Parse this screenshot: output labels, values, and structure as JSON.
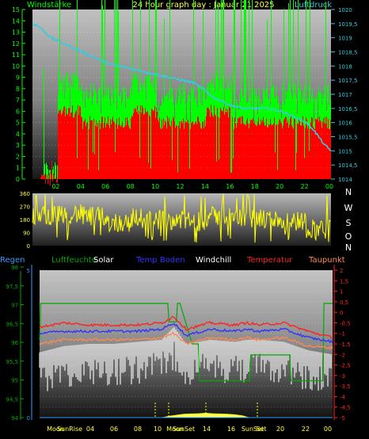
{
  "colors": {
    "background": "#000000",
    "wind_gust": "#00ff00",
    "wind_avg": "#ff0000",
    "pressure": "#33ccdd",
    "wind_dir": "#ffff00",
    "regen": "#3399ff",
    "luftfeuchte": "#00aa00",
    "solar": "#ffff55",
    "temp_boden": "#3333ff",
    "windchill": "#ffffff",
    "temperatur": "#ff2222",
    "taupunkt": "#ff8855"
  },
  "chart_data": [
    {
      "type": "bar",
      "title": "24 hour graph day : Januar 21 2025",
      "left_axis_title": "Windstärke",
      "right_axis_title": "Luftdruck",
      "x_ticks": [
        "02",
        "04",
        "06",
        "08",
        "10",
        "12",
        "14",
        "16",
        "18",
        "20",
        "22",
        "00"
      ],
      "x_range": [
        0,
        24
      ],
      "y_left_ticks": [
        "0",
        "1",
        "2",
        "3",
        "4",
        "5",
        "6",
        "7",
        "8",
        "9",
        "10",
        "11",
        "12",
        "13",
        "14",
        "15"
      ],
      "y_left_range": [
        0,
        15
      ],
      "y_right_ticks": [
        "1014",
        "1014,5",
        "1015",
        "1015,5",
        "1016",
        "1016,5",
        "1017",
        "1017,5",
        "1018",
        "1018,5",
        "1019",
        "1019,5",
        "1020"
      ],
      "y_right_range": [
        1014,
        1020
      ],
      "series": [
        {
          "name": "gust_level",
          "values": [
            0,
            8,
            7,
            7,
            8,
            7,
            7,
            8,
            7,
            7,
            7,
            7
          ]
        },
        {
          "name": "avg_level",
          "values": [
            0,
            6,
            5,
            5,
            6,
            5,
            5,
            6,
            5,
            5,
            5,
            5
          ]
        },
        {
          "name": "pressure",
          "x": [
            0,
            0.5,
            1,
            1.5,
            2,
            3,
            4,
            5,
            6,
            7,
            8,
            9,
            10,
            11,
            12,
            13,
            14,
            14.5,
            15,
            16,
            17,
            18,
            19,
            20,
            21,
            22,
            22.5,
            23,
            23.5,
            24
          ],
          "values": [
            1019.5,
            1019.4,
            1019.2,
            1019.0,
            1018.9,
            1018.7,
            1018.5,
            1018.3,
            1018.1,
            1018.0,
            1017.9,
            1017.8,
            1017.7,
            1017.6,
            1017.5,
            1017.4,
            1017.1,
            1016.9,
            1016.8,
            1016.6,
            1016.5,
            1016.5,
            1016.5,
            1016.4,
            1016.2,
            1016.0,
            1015.8,
            1015.5,
            1015.2,
            1015.0
          ]
        }
      ]
    },
    {
      "type": "scatter",
      "right_labels": [
        "N",
        "W",
        "S",
        "O",
        "N"
      ],
      "y_ticks": [
        "0",
        "90",
        "180",
        "270",
        "360"
      ],
      "y_range": [
        0,
        360
      ],
      "series": [
        {
          "name": "wind_dir_band",
          "values": [
            210,
            220,
            200,
            160,
            190,
            180,
            170,
            200,
            190,
            180,
            170,
            120
          ]
        }
      ]
    },
    {
      "type": "line",
      "legend": [
        "Regen",
        "Luftfeuchte",
        "Solar",
        "Temp Boden",
        "Windchill",
        "Temperatur",
        "Taupunkt"
      ],
      "y_left_ticks": [
        "94",
        "94,5",
        "95",
        "95,5",
        "96",
        "96,5",
        "97",
        "97,5",
        "98"
      ],
      "y_left_range": [
        94,
        98
      ],
      "y_left2_ticks": [
        "0",
        "5"
      ],
      "y_right_ticks": [
        "2",
        "1,5",
        "1",
        "0,5",
        "0",
        "-0,5",
        "-1",
        "-1,5",
        "-2",
        "-2,5",
        "-3",
        "-3,5",
        "-4",
        "-4,5",
        "-5"
      ],
      "y_right_range": [
        -5,
        2
      ],
      "x_labels": [
        "Moon",
        "SunRise",
        "04",
        "06",
        "08",
        "10",
        "Moon",
        "SunSet",
        "14",
        "16",
        "SunSet",
        "Set",
        "20",
        "22",
        "00"
      ],
      "series": [
        {
          "name": "Temperatur",
          "x": [
            0,
            2,
            4,
            6,
            8,
            10,
            11,
            12,
            14,
            16,
            17,
            18,
            20,
            22,
            24
          ],
          "values": [
            -0.7,
            -0.5,
            -0.6,
            -0.6,
            -0.6,
            -0.5,
            -0.2,
            -0.8,
            -0.5,
            -0.6,
            -0.5,
            -0.6,
            -0.5,
            -0.9,
            -1.2
          ]
        },
        {
          "name": "Temp Boden",
          "x": [
            0,
            2,
            4,
            6,
            8,
            10,
            11,
            12,
            14,
            16,
            17,
            18,
            20,
            22,
            24
          ],
          "values": [
            -1.0,
            -0.9,
            -0.9,
            -0.9,
            -0.9,
            -0.8,
            -0.5,
            -1.1,
            -0.8,
            -0.9,
            -0.8,
            -0.9,
            -0.8,
            -1.2,
            -1.4
          ]
        },
        {
          "name": "Taupunkt",
          "x": [
            0,
            2,
            4,
            6,
            8,
            10,
            11,
            12,
            14,
            16,
            17,
            18,
            20,
            22,
            24
          ],
          "values": [
            -1.5,
            -1.3,
            -1.3,
            -1.3,
            -1.3,
            -1.2,
            -1.0,
            -1.5,
            -1.2,
            -1.3,
            -1.2,
            -1.3,
            -1.2,
            -1.6,
            -1.7
          ]
        },
        {
          "name": "Windchill",
          "x": [
            0,
            2,
            4,
            6,
            8,
            10,
            11,
            12,
            14,
            16,
            17,
            18,
            20,
            22,
            24
          ],
          "values": [
            -2.6,
            -2.3,
            -2.2,
            -2.2,
            -2.1,
            -2.0,
            -1.4,
            -2.2,
            -2.0,
            -2.1,
            -2.0,
            -2.0,
            -2.1,
            -2.5,
            -2.7
          ]
        },
        {
          "name": "Luftfeuchte",
          "x": [
            0,
            0.1,
            10.5,
            10.6,
            11.2,
            11.3,
            11.5,
            12.5,
            13,
            13.1,
            17.2,
            17.3,
            20.5,
            20.6,
            23.2,
            23.3,
            24
          ],
          "values": [
            96.1,
            97.1,
            97.1,
            96.6,
            96.6,
            97.1,
            97.1,
            96.0,
            96.0,
            95.0,
            95.0,
            95.7,
            95.7,
            95.0,
            95.0,
            97.1,
            97.1
          ]
        },
        {
          "name": "Solar",
          "x": [
            10.0,
            10.6,
            11.2,
            11.8,
            12.4,
            13.0,
            13.6,
            14.2,
            14.8,
            15.4,
            16.0,
            16.6,
            17.2
          ],
          "values": [
            0,
            0.6,
            1.0,
            1.4,
            1.5,
            1.6,
            1.8,
            1.6,
            1.5,
            1.4,
            1.2,
            0.8,
            0
          ]
        }
      ]
    }
  ]
}
